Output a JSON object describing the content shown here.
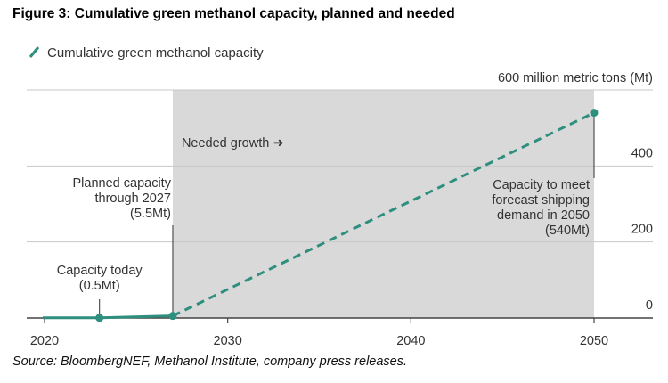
{
  "figure": {
    "title": "Figure 3:  Cumulative green methanol capacity, planned and needed",
    "source": "Source: BloombergNEF, Methanol Institute, company press releases."
  },
  "chart_data": {
    "type": "line",
    "title": "Figure 3:  Cumulative green methanol capacity, planned and needed",
    "legend": {
      "label": "Cumulative green methanol capacity",
      "position": "top-left"
    },
    "unit_label": "600 million metric tons (Mt)",
    "x_ticks": [
      "2020",
      "2030",
      "2040",
      "2050"
    ],
    "x_tick_values": [
      2020,
      2030,
      2040,
      2050
    ],
    "y_ticks": [
      "0",
      "200",
      "400"
    ],
    "y_tick_values": [
      0,
      200,
      400
    ],
    "xlim": [
      2019.9,
      2053
    ],
    "ylim": [
      0,
      600
    ],
    "grid": true,
    "colors": {
      "line": "#2e8f7f",
      "shade": "#d9d9d9",
      "grid": "#c8c8c8",
      "text": "#333333"
    },
    "series": [
      {
        "name": "Planned capacity",
        "style": "solid",
        "x": [
          2019.9,
          2023,
          2027
        ],
        "y": [
          0.5,
          0.5,
          5.5
        ],
        "markers": [
          2023,
          2027
        ]
      },
      {
        "name": "Needed growth",
        "style": "dashed",
        "x": [
          2027,
          2050
        ],
        "y": [
          5.5,
          540
        ],
        "markers": [
          2050
        ]
      }
    ],
    "shaded_region": {
      "x_start": 2027,
      "x_end": 2050,
      "label": "Needed growth ➜"
    },
    "annotations": [
      {
        "id": "today",
        "lines": [
          "Capacity today",
          "(0.5Mt)"
        ],
        "x": 2023,
        "y": 0.5
      },
      {
        "id": "planned",
        "lines": [
          "Planned capacity",
          "through 2027",
          "(5.5Mt)"
        ],
        "x": 2027,
        "y": 5.5
      },
      {
        "id": "target",
        "lines": [
          "Capacity to meet",
          "forecast shipping",
          "demand in 2050",
          "(540Mt)"
        ],
        "x": 2050,
        "y": 540
      }
    ]
  }
}
